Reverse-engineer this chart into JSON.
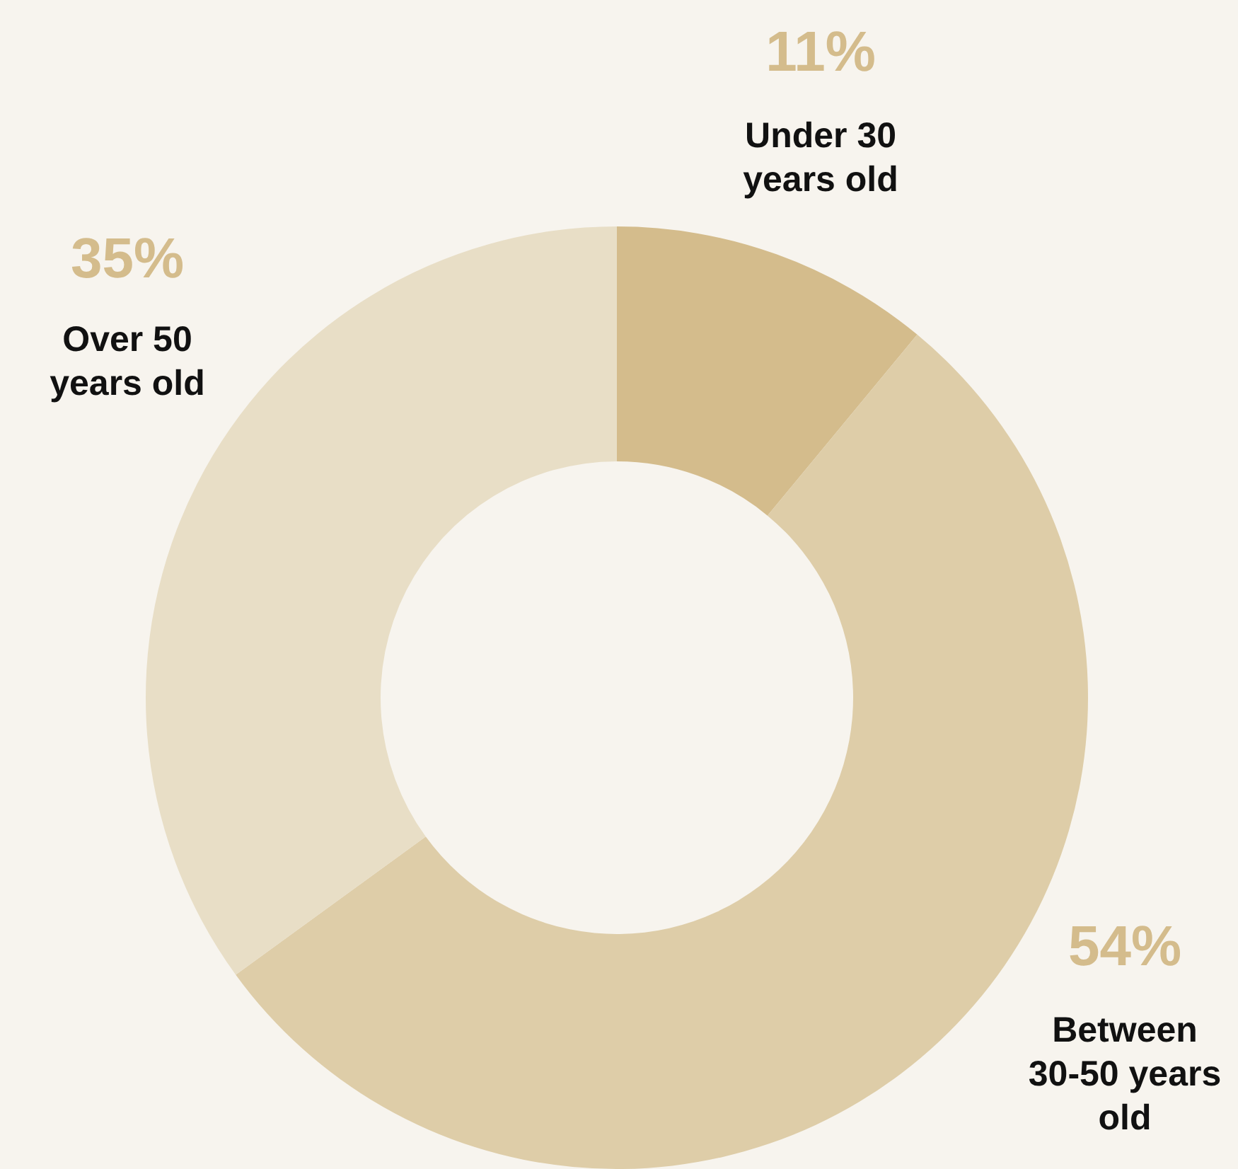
{
  "chart_data": {
    "type": "donut",
    "categories": [
      "Under 30 years old",
      "Between 30-50 years old",
      "Over 50 years old"
    ],
    "values": [
      11,
      54,
      35
    ],
    "value_labels": [
      "11%",
      "54%",
      "35%"
    ],
    "colors": [
      "#d4bc8c",
      "#decda8",
      "#e8dec6"
    ]
  }
}
